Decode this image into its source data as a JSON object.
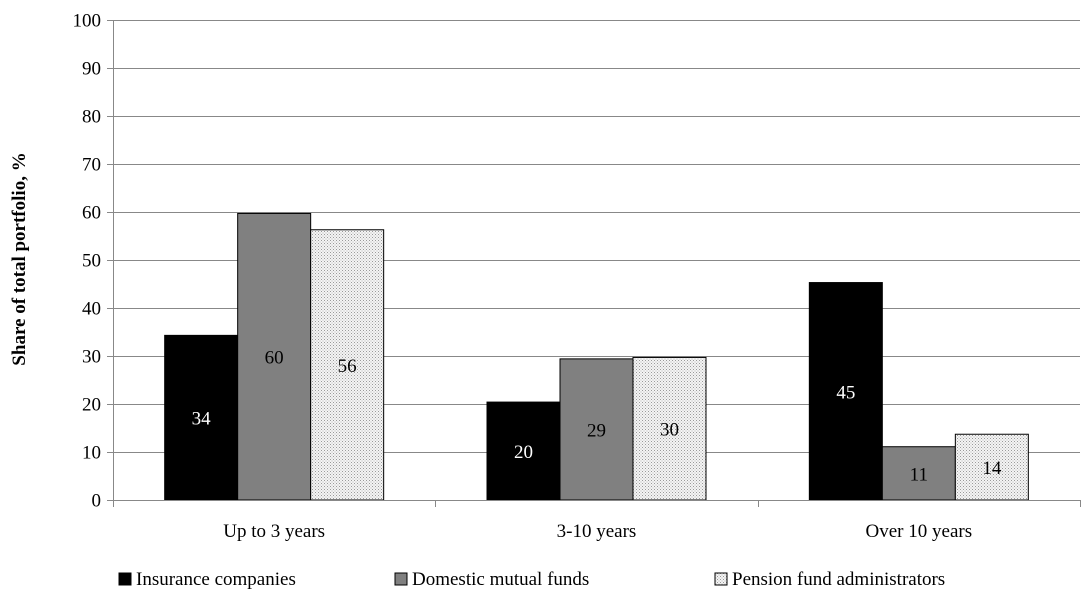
{
  "chart_data": {
    "type": "bar",
    "categories": [
      "Up to 3 years",
      "3-10 years",
      "Over 10 years"
    ],
    "series": [
      {
        "name": "Insurance companies",
        "values": [
          34.3,
          20.4,
          45.3
        ],
        "labels": [
          "34",
          "20",
          "45"
        ],
        "color": "#000000",
        "label_color": "#ffffff"
      },
      {
        "name": "Domestic mutual funds",
        "values": [
          59.7,
          29.4,
          11.1
        ],
        "labels": [
          "60",
          "29",
          "11"
        ],
        "color": "#808080",
        "label_color": "#000000"
      },
      {
        "name": "Pension fund administrators",
        "values": [
          56.3,
          29.7,
          13.7
        ],
        "labels": [
          "56",
          "30",
          "14"
        ],
        "color": "#f2f2f2",
        "pattern": "dotted",
        "label_color": "#000000"
      }
    ],
    "ylabel": "Share of total portfolio, %",
    "xlabel": "",
    "title": "",
    "ylim": [
      0,
      100
    ],
    "yticks": [
      0,
      10,
      20,
      30,
      40,
      50,
      60,
      70,
      80,
      90,
      100
    ],
    "grid": true,
    "legend_position": "bottom"
  }
}
